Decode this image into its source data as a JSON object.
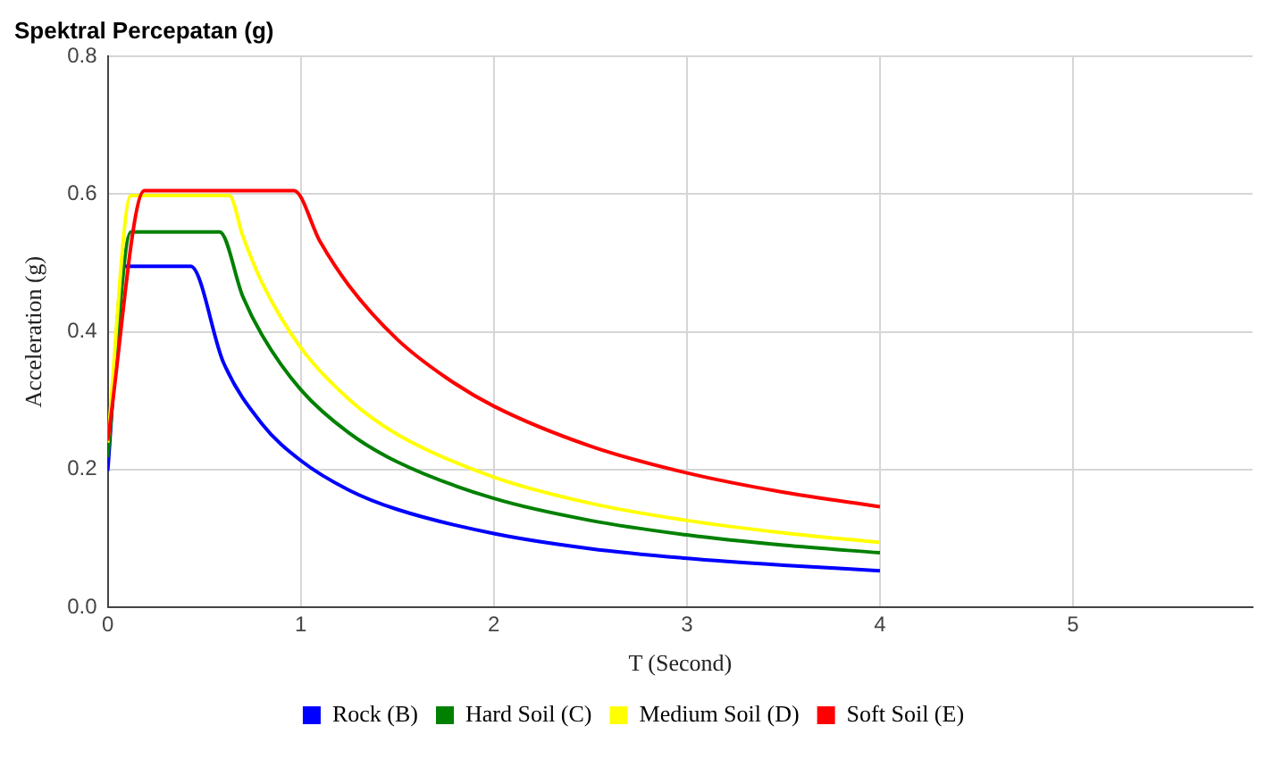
{
  "chart_data": {
    "type": "line",
    "title": "Spektral Percepatan (g)",
    "xlabel": "T (Second)",
    "ylabel": "Acceleration (g)",
    "xlim": [
      0,
      5.93
    ],
    "xticks": [
      0,
      1,
      2,
      3,
      4,
      5
    ],
    "ylim": [
      0,
      0.8
    ],
    "yticks": [
      {
        "value": 0,
        "label": "0.0"
      },
      {
        "value": 0.2,
        "label": "0.2"
      },
      {
        "value": 0.4,
        "label": "0.4"
      },
      {
        "value": 0.6,
        "label": "0.6"
      },
      {
        "value": 0.8,
        "label": "0.8"
      }
    ],
    "grid": true,
    "legend": "bottom",
    "marker": "none",
    "line_style": "solid",
    "series": [
      {
        "name": "Rock (B)",
        "color": "#0000ff",
        "x": [
          0,
          0.085,
          0.43,
          0.6,
          0.8,
          1,
          1.25,
          1.5,
          2,
          2.5,
          3,
          3.5,
          4
        ],
        "values": [
          0.198,
          0.495,
          0.495,
          0.355,
          0.266,
          0.213,
          0.17,
          0.142,
          0.107,
          0.085,
          0.071,
          0.061,
          0.053
        ]
      },
      {
        "name": "Hard Soil (C)",
        "color": "#008000",
        "x": [
          0,
          0.12,
          0.58,
          0.7,
          0.8,
          1,
          1.25,
          1.5,
          2,
          2.5,
          3,
          3.5,
          4
        ],
        "values": [
          0.218,
          0.545,
          0.545,
          0.451,
          0.395,
          0.316,
          0.253,
          0.211,
          0.158,
          0.126,
          0.105,
          0.09,
          0.079
        ]
      },
      {
        "name": "Medium Soil (D)",
        "color": "#ffff00",
        "x": [
          0,
          0.12,
          0.63,
          0.7,
          0.8,
          1,
          1.25,
          1.5,
          2,
          2.5,
          3,
          3.5,
          4
        ],
        "values": [
          0.239,
          0.598,
          0.598,
          0.539,
          0.471,
          0.377,
          0.302,
          0.251,
          0.189,
          0.151,
          0.126,
          0.108,
          0.094
        ]
      },
      {
        "name": "Soft Soil (E)",
        "color": "#ff0000",
        "x": [
          0,
          0.19,
          0.965,
          1.1,
          1.25,
          1.5,
          1.75,
          2,
          2.5,
          3,
          3.5,
          4
        ],
        "values": [
          0.242,
          0.605,
          0.605,
          0.531,
          0.467,
          0.389,
          0.334,
          0.292,
          0.234,
          0.195,
          0.167,
          0.146
        ]
      }
    ]
  }
}
